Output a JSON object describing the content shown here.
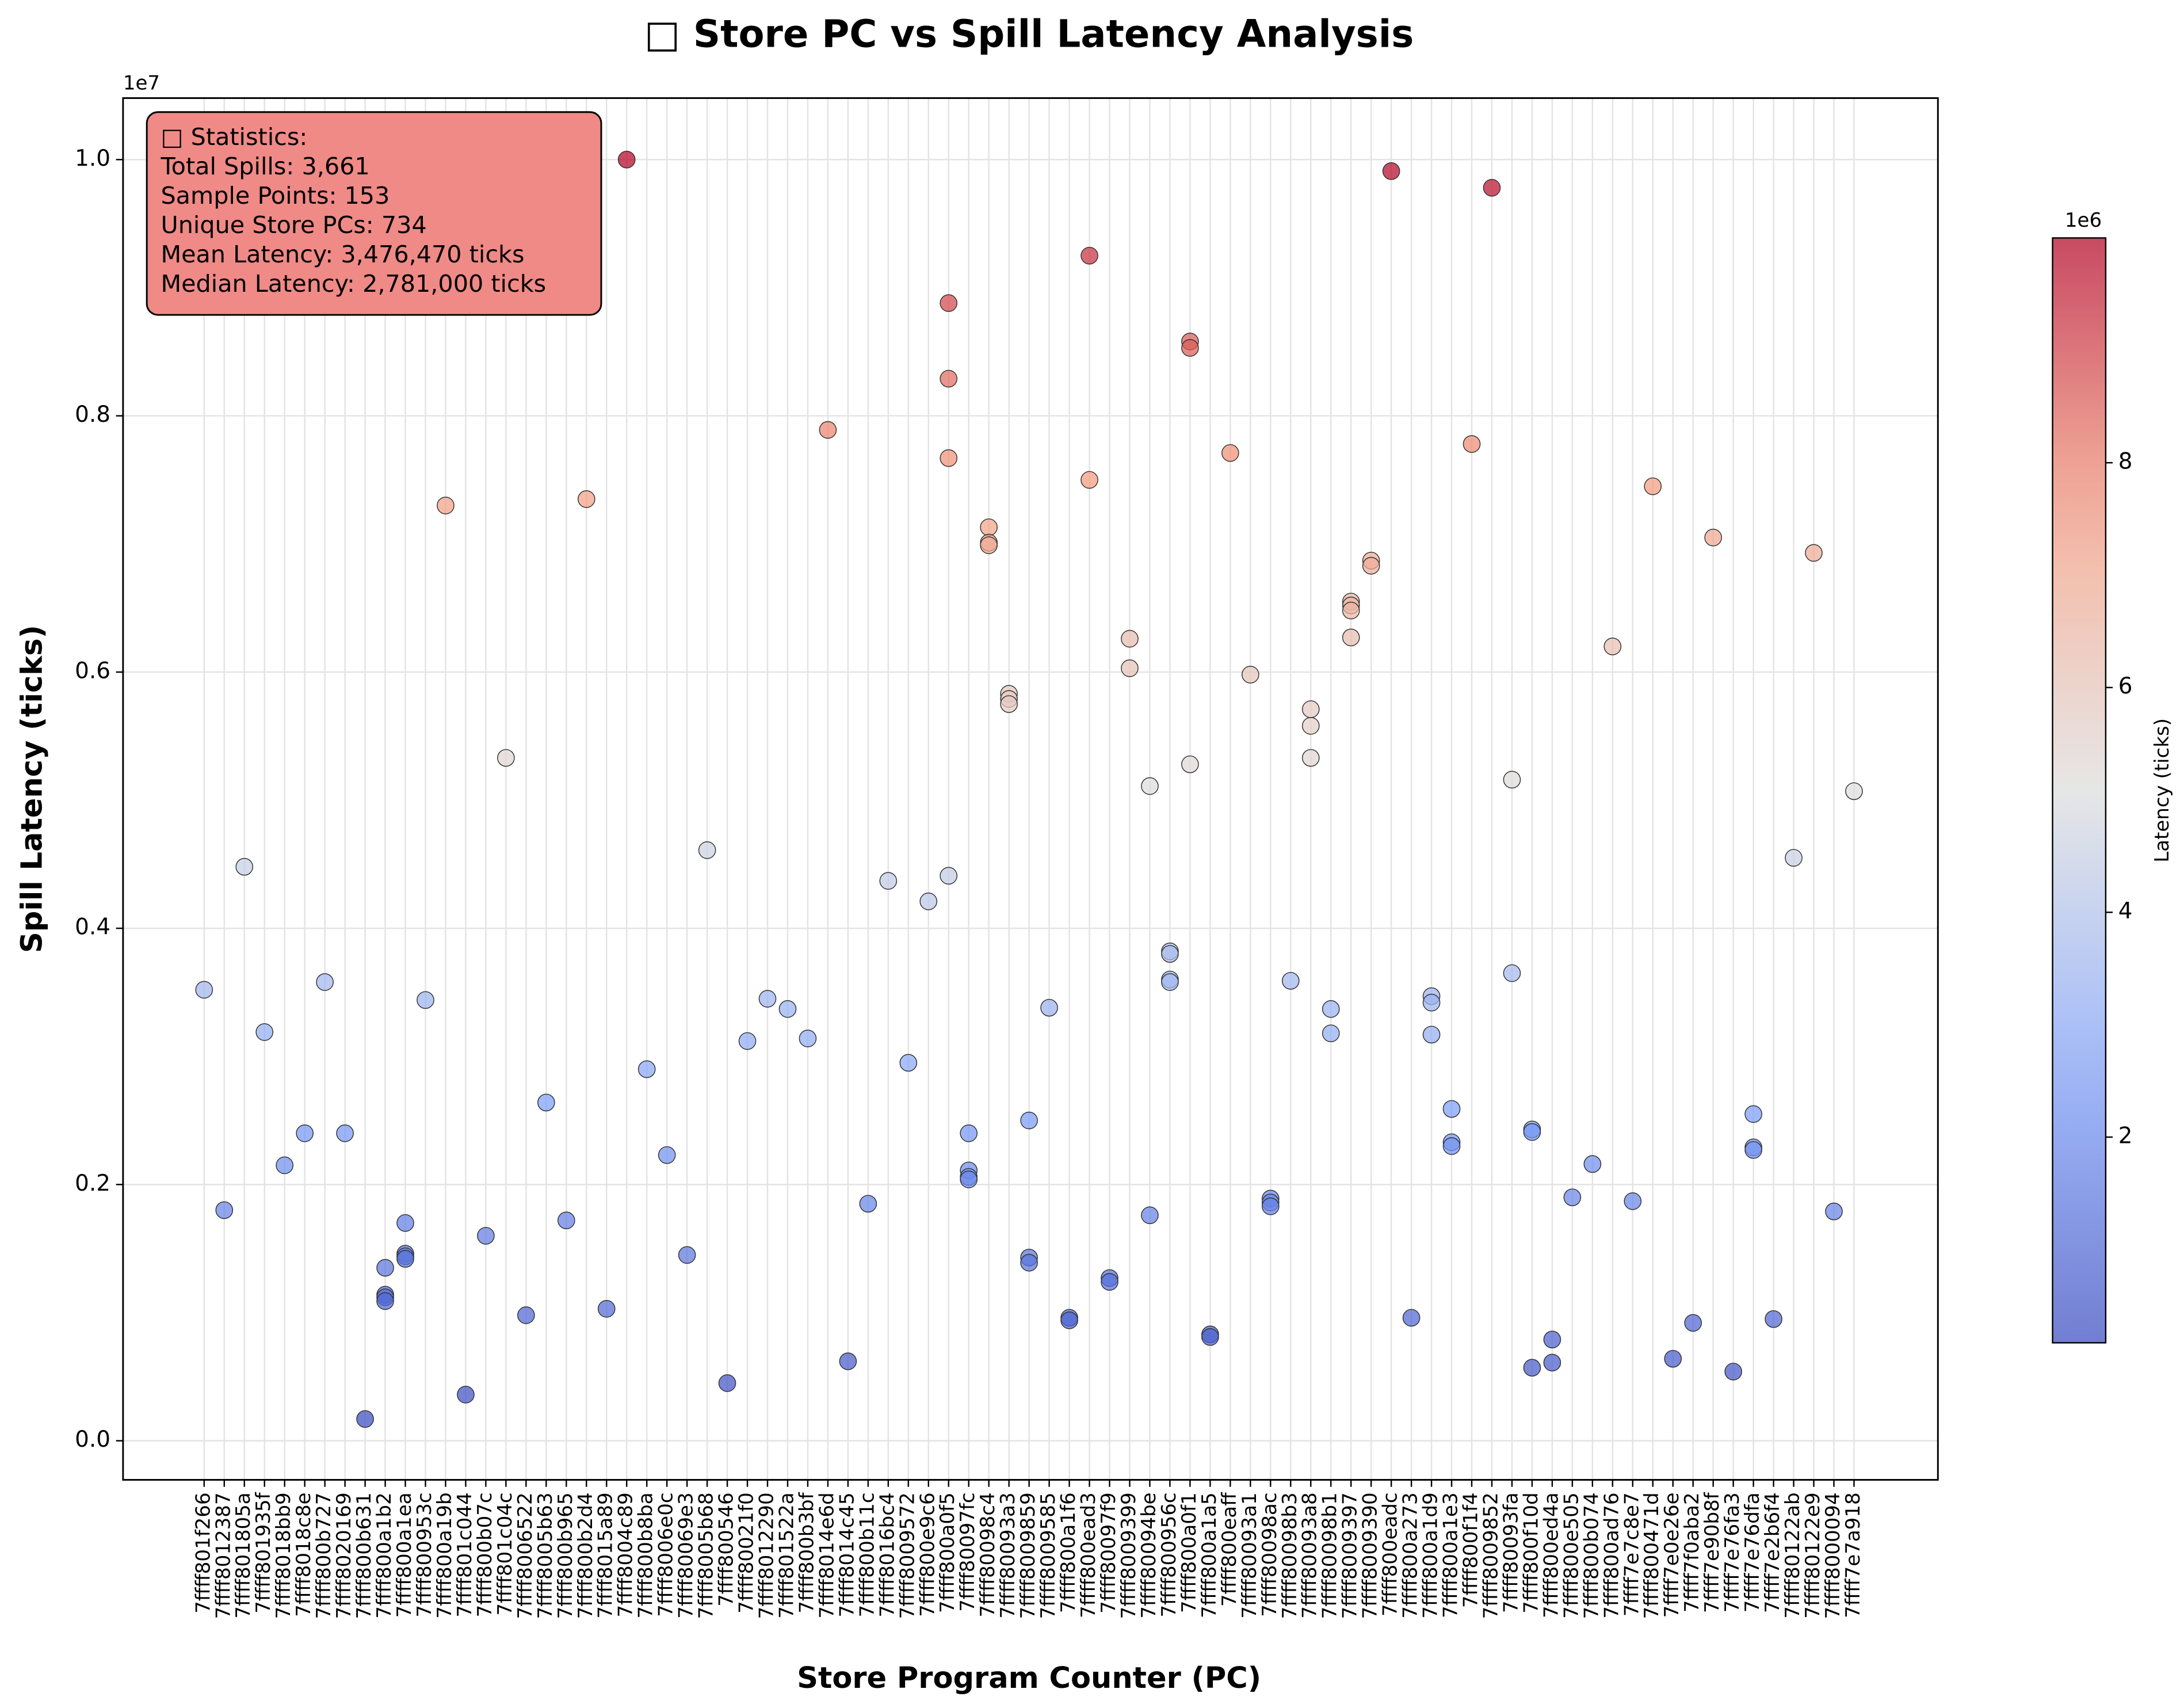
{
  "chart_data": {
    "type": "scatter",
    "title": "□ Store PC vs Spill Latency Analysis",
    "x_label": "Store Program Counter (PC)",
    "y_label": "Spill Latency (ticks)",
    "y_offset_label": "1e7",
    "colorbar_label": "Latency (ticks)",
    "colorbar_offset_label": "1e6",
    "colormap": "coolwarm",
    "grid": true,
    "annotation": [
      "□ Statistics:",
      "Total Spills: 3,661",
      "Sample Points: 153",
      "Unique Store PCs: 734",
      "Mean Latency: 3,476,470 ticks",
      "Median Latency: 2,781,000 ticks"
    ],
    "annotation_color": "#f08a87",
    "categories": [
      "7ffff801f266",
      "7ffff8012387",
      "7ffff801805a",
      "7ffff801935f",
      "7ffff8018bb9",
      "7ffff8018c8e",
      "7ffff800b727",
      "7ffff8020169",
      "7ffff800b631",
      "7ffff800a1b2",
      "7ffff800a1ea",
      "7ffff800953c",
      "7ffff800a19b",
      "7ffff801c044",
      "7ffff800b07c",
      "7ffff801c04c",
      "7ffff8006522",
      "7ffff8005b63",
      "7ffff800b965",
      "7ffff800b2d4",
      "7ffff8015a89",
      "7ffff8004c89",
      "7ffff800b8ba",
      "7ffff8006e0c",
      "7ffff80069e3",
      "7ffff8005b68",
      "7ffff800546",
      "7ffff80021f0",
      "7ffff8012290",
      "7ffff801522a",
      "7ffff800b3bf",
      "7ffff8014e6d",
      "7ffff8014c45",
      "7ffff800b11c",
      "7ffff8016bc4",
      "7ffff8009572",
      "7ffff800e9c6",
      "7ffff800a0f5",
      "7ffff80097fc",
      "7ffff80098c4",
      "7ffff80093a3",
      "7ffff8009859",
      "7ffff8009585",
      "7ffff800a1f6",
      "7ffff800ead3",
      "7ffff80097f9",
      "7ffff8009399",
      "7ffff80094be",
      "7ffff800956c",
      "7ffff800a0f1",
      "7ffff800a1a5",
      "7ffff800eaff",
      "7ffff80093a1",
      "7ffff80098ac",
      "7ffff80098b3",
      "7ffff80093a8",
      "7ffff80098b1",
      "7ffff8009397",
      "7ffff8009390",
      "7ffff800eadc",
      "7ffff800a273",
      "7ffff800a1d9",
      "7ffff800a1e3",
      "7ffff800f1f4",
      "7ffff8009852",
      "7ffff80093fa",
      "7ffff800f10d",
      "7ffff800ed4a",
      "7ffff800e505",
      "7ffff800b074",
      "7ffff800ad76",
      "7ffff7e7c8e7",
      "7ffff800471d",
      "7ffff7e0e26e",
      "7ffff7f0aba2",
      "7ffff7e90b8f",
      "7ffff7e76fa3",
      "7ffff7e76dfa",
      "7ffff7e2b6f4",
      "7ffff80122ab",
      "7ffff80122e9",
      "7ffff8000094",
      "7ffff7e7a918"
    ],
    "values": [
      [
        3520000
      ],
      [
        1800000
      ],
      [
        4480000
      ],
      [
        3190000
      ],
      [
        2150000
      ],
      [
        2400000
      ],
      [
        3580000
      ],
      [
        2400000
      ],
      [
        170000
      ],
      [
        1350000,
        1140000,
        1120000,
        1090000
      ],
      [
        1700000,
        1460000,
        1440000,
        1420000
      ],
      [
        3440000
      ],
      [
        7300000
      ],
      [
        360000
      ],
      [
        1600000
      ],
      [
        5330000
      ],
      [
        980000
      ],
      [
        2640000
      ],
      [
        1720000
      ],
      [
        7350000
      ],
      [
        1030000
      ],
      [
        10000000
      ],
      [
        2900000
      ],
      [
        2230000
      ],
      [
        1450000
      ],
      [
        4610000
      ],
      [
        450000
      ],
      [
        3120000
      ],
      [
        3450000
      ],
      [
        3370000
      ],
      [
        3140000
      ],
      [
        7890000
      ],
      [
        620000
      ],
      [
        1850000
      ],
      [
        4370000
      ],
      [
        2950000
      ],
      [
        4210000
      ],
      [
        8880000,
        8290000,
        7670000,
        4410000
      ],
      [
        2400000,
        2110000,
        2060000,
        2040000
      ],
      [
        7130000,
        7010000,
        6990000
      ],
      [
        5830000,
        5790000,
        5750000
      ],
      [
        2500000,
        1430000,
        1390000
      ],
      [
        3380000
      ],
      [
        960000,
        940000
      ],
      [
        9250000,
        7500000
      ],
      [
        1270000,
        1240000
      ],
      [
        6260000,
        6030000
      ],
      [
        5110000,
        1760000
      ],
      [
        3820000,
        3800000,
        3600000,
        3580000
      ],
      [
        8580000,
        8530000,
        5280000
      ],
      [
        830000,
        810000
      ],
      [
        7710000
      ],
      [
        5980000
      ],
      [
        1890000,
        1860000,
        1830000
      ],
      [
        3590000
      ],
      [
        5710000,
        5580000,
        5330000
      ],
      [
        3370000,
        3180000
      ],
      [
        6550000,
        6520000,
        6480000,
        6270000
      ],
      [
        6870000,
        6830000
      ],
      [
        9910000
      ],
      [
        960000
      ],
      [
        3470000,
        3420000,
        3170000
      ],
      [
        2590000,
        2330000,
        2300000
      ],
      [
        7780000
      ],
      [
        9780000
      ],
      [
        5160000,
        3650000
      ],
      [
        2430000,
        2410000,
        570000
      ],
      [
        790000,
        610000
      ],
      [
        1900000
      ],
      [
        2160000
      ],
      [
        6200000
      ],
      [
        1870000
      ],
      [
        7450000
      ],
      [
        640000
      ],
      [
        920000
      ],
      [
        7050000
      ],
      [
        540000
      ],
      [
        2550000,
        2290000,
        2270000
      ],
      [
        950000
      ],
      [
        4550000
      ],
      [
        6930000
      ],
      [
        1790000
      ],
      [
        5070000
      ]
    ],
    "ylim": [
      -305000,
      10480000
    ],
    "yticks": [
      {
        "value": 0,
        "label": "0.0"
      },
      {
        "value": 2000000,
        "label": "0.2"
      },
      {
        "value": 4000000,
        "label": "0.4"
      },
      {
        "value": 6000000,
        "label": "0.6"
      },
      {
        "value": 8000000,
        "label": "0.8"
      },
      {
        "value": 10000000,
        "label": "1.0"
      }
    ],
    "clim": [
      170000,
      10000000
    ],
    "colorbar_ticks": [
      {
        "value": 2000000,
        "label": "2"
      },
      {
        "value": 4000000,
        "label": "4"
      },
      {
        "value": 6000000,
        "label": "6"
      },
      {
        "value": 8000000,
        "label": "8"
      }
    ]
  }
}
